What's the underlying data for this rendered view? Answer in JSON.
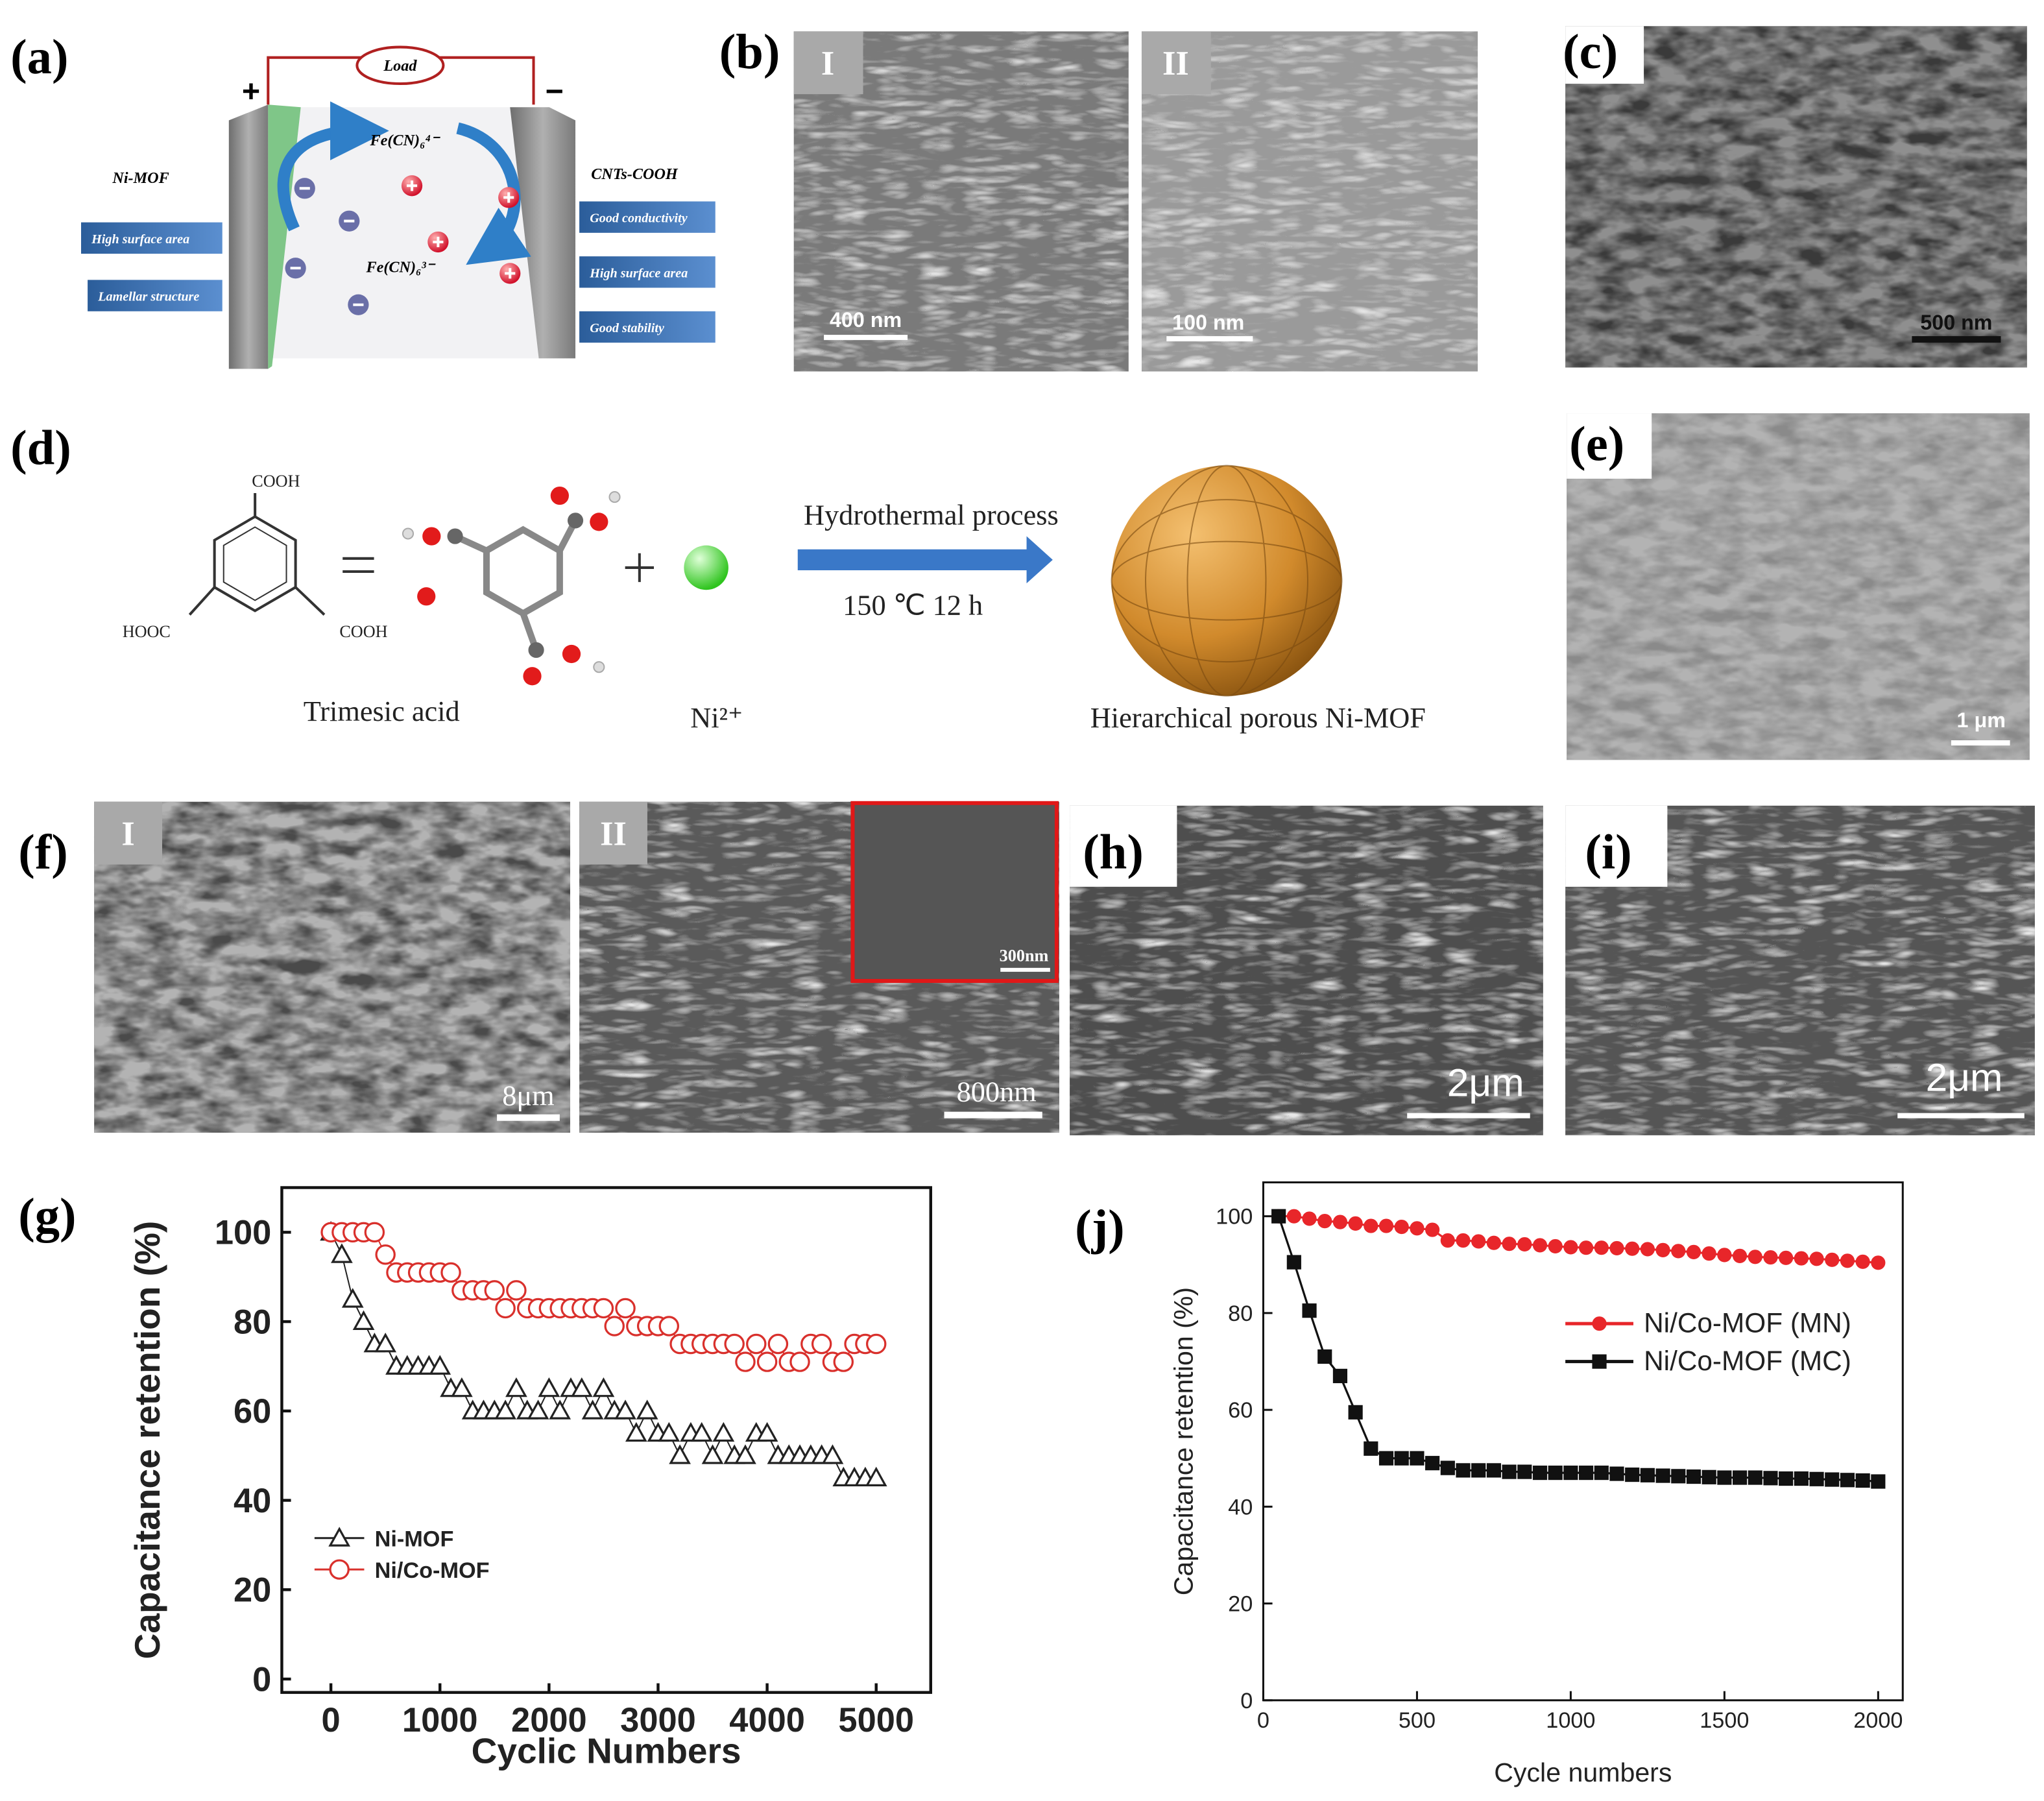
{
  "panels": {
    "a": {
      "label": "(a)",
      "load": "Load",
      "positive": "+",
      "negative": "−",
      "left_title": "Ni-MOF",
      "right_title": "CNTs-COOH",
      "left_features": [
        "High surface area",
        "Lamellar structure"
      ],
      "right_features": [
        "Good conductivity",
        "High surface area",
        "Good stability"
      ],
      "ion_top": "Fe(CN)₆⁴⁻",
      "ion_bottom": "Fe(CN)₆³⁻"
    },
    "b": {
      "label": "(b)",
      "sub": [
        "I",
        "II"
      ],
      "scale_bars": [
        "400 nm",
        "100 nm"
      ]
    },
    "c": {
      "label": "(c)",
      "scale_bar": "500 nm"
    },
    "d": {
      "label": "(d)",
      "cooh_top": "COOH",
      "hooc_left": "HOOC",
      "cooh_right": "COOH",
      "reagent": "Trimesic acid",
      "ion": "Ni²⁺",
      "process": "Hydrothermal process",
      "conditions": "150 ℃ 12 h",
      "product": "Hierarchical porous Ni-MOF"
    },
    "e": {
      "label": "(e)",
      "scale_bar": "1 μm"
    },
    "f": {
      "label": "(f)",
      "sub": [
        "I",
        "II"
      ],
      "scale_bars": [
        "8μm",
        "800nm",
        "300nm"
      ]
    },
    "h": {
      "label": "(h)",
      "scale_bar": "2μm"
    },
    "i": {
      "label": "(i)",
      "scale_bar": "2μm"
    }
  },
  "chart_data": [
    {
      "type": "line",
      "panel_label": "(g)",
      "x_label": "Cyclic Numbers",
      "y_label": "Capacitance retention (%)",
      "x": [
        0,
        100,
        200,
        300,
        400,
        500,
        600,
        700,
        800,
        900,
        1000,
        1100,
        1200,
        1300,
        1400,
        1500,
        1600,
        1700,
        1800,
        1900,
        2000,
        2100,
        2200,
        2300,
        2400,
        2500,
        2600,
        2700,
        2800,
        2900,
        3000,
        3100,
        3200,
        3300,
        3400,
        3500,
        3600,
        3700,
        3800,
        3900,
        4000,
        4100,
        4200,
        4300,
        4400,
        4500,
        4600,
        4700,
        4800,
        4900,
        5000
      ],
      "series": [
        {
          "name": "Ni-MOF",
          "color": "#222222",
          "marker": "triangle",
          "values": [
            100,
            95,
            85,
            80,
            75,
            75,
            70,
            70,
            70,
            70,
            70,
            65,
            65,
            60,
            60,
            60,
            60,
            65,
            60,
            60,
            65,
            60,
            65,
            65,
            60,
            65,
            60,
            60,
            55,
            60,
            55,
            55,
            50,
            55,
            55,
            50,
            55,
            50,
            50,
            55,
            55,
            50,
            50,
            50,
            50,
            50,
            50,
            45,
            45,
            45,
            45
          ]
        },
        {
          "name": "Ni/Co-MOF",
          "color": "#d9302c",
          "marker": "circle",
          "values": [
            100,
            100,
            100,
            100,
            100,
            95,
            91,
            91,
            91,
            91,
            91,
            91,
            87,
            87,
            87,
            87,
            83,
            87,
            83,
            83,
            83,
            83,
            83,
            83,
            83,
            83,
            79,
            83,
            79,
            79,
            79,
            79,
            75,
            75,
            75,
            75,
            75,
            75,
            71,
            75,
            71,
            75,
            71,
            71,
            75,
            75,
            71,
            71,
            75,
            75,
            75
          ]
        }
      ],
      "xlim": [
        -450,
        5500
      ],
      "ylim": [
        -3,
        110
      ],
      "xticks": [
        0,
        1000,
        2000,
        3000,
        4000,
        5000
      ],
      "yticks": [
        0,
        20,
        40,
        60,
        80,
        100
      ],
      "legend": "lower left",
      "filled": false
    },
    {
      "type": "line",
      "panel_label": "(j)",
      "x_label": "Cycle numbers",
      "y_label": "Capacitance retention (%)",
      "x": [
        50,
        100,
        150,
        200,
        250,
        300,
        350,
        400,
        450,
        500,
        550,
        600,
        650,
        700,
        750,
        800,
        850,
        900,
        950,
        1000,
        1050,
        1100,
        1150,
        1200,
        1250,
        1300,
        1350,
        1400,
        1450,
        1500,
        1550,
        1600,
        1650,
        1700,
        1750,
        1800,
        1850,
        1900,
        1950,
        2000
      ],
      "series": [
        {
          "name": "Ni/Co-MOF (MN)",
          "color": "#e8262a",
          "marker": "circle",
          "values": [
            100,
            100,
            99.5,
            99,
            98.8,
            98.5,
            98,
            98,
            97.8,
            97.5,
            97.2,
            95,
            95,
            94.8,
            94.5,
            94.3,
            94.2,
            94,
            93.8,
            93.6,
            93.5,
            93.5,
            93.4,
            93.3,
            93.2,
            93,
            92.8,
            92.6,
            92.3,
            92,
            91.8,
            91.6,
            91.5,
            91.4,
            91.3,
            91.2,
            91,
            90.8,
            90.6,
            90.4
          ]
        },
        {
          "name": "Ni/Co-MOF (MC)",
          "color": "#111111",
          "marker": "square",
          "values": [
            100,
            90.5,
            80.5,
            71,
            67,
            59.5,
            52,
            50,
            50,
            50,
            49,
            48,
            47.5,
            47.5,
            47.5,
            47.2,
            47.2,
            47,
            47,
            47,
            47,
            47,
            46.8,
            46.6,
            46.5,
            46.4,
            46.3,
            46.2,
            46.1,
            46,
            46,
            46,
            45.9,
            45.8,
            45.8,
            45.7,
            45.6,
            45.5,
            45.4,
            45.2
          ]
        }
      ],
      "xlim": [
        0,
        2080
      ],
      "ylim": [
        0,
        107
      ],
      "xticks": [
        0,
        500,
        1000,
        1500,
        2000
      ],
      "yticks": [
        0,
        20,
        40,
        60,
        80,
        100
      ],
      "legend": "right",
      "filled": true
    }
  ]
}
